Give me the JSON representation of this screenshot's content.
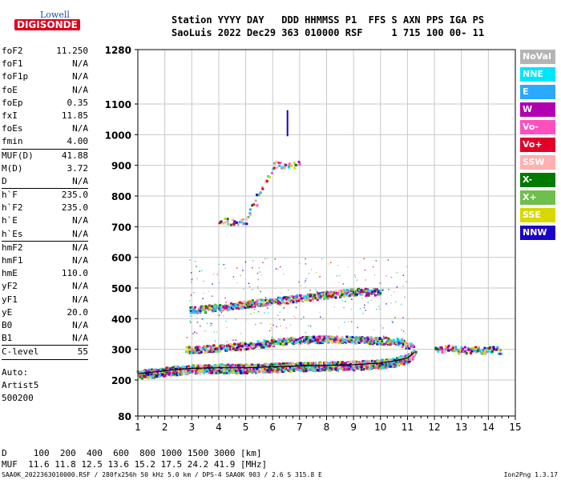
{
  "logo": {
    "line1": "Lowell",
    "line2": "DIGISONDE"
  },
  "header": {
    "line1": "Station YYYY DAY   DDD HHMMSS P1  FFS S AXN PPS IGA PS",
    "line2": "SaoLuis 2022 Dec29 363 010000 RSF     1 715 100 00- 11"
  },
  "params": {
    "g1": [
      {
        "k": "foF2",
        "v": "11.250"
      },
      {
        "k": "foF1",
        "v": "N/A"
      },
      {
        "k": "foF1p",
        "v": "N/A"
      },
      {
        "k": "foE",
        "v": "N/A"
      },
      {
        "k": "foEp",
        "v": "0.35"
      },
      {
        "k": "fxI",
        "v": "11.85"
      },
      {
        "k": "foEs",
        "v": "N/A"
      },
      {
        "k": "fmin",
        "v": "4.00"
      }
    ],
    "g2": [
      {
        "k": "MUF(D)",
        "v": "41.88"
      },
      {
        "k": "M(D)",
        "v": "3.72"
      },
      {
        "k": "D",
        "v": "N/A"
      }
    ],
    "g3": [
      {
        "k": "h`F",
        "v": "235.0"
      },
      {
        "k": "h`F2",
        "v": "235.0"
      },
      {
        "k": "h`E",
        "v": "N/A"
      },
      {
        "k": "h`Es",
        "v": "N/A"
      }
    ],
    "g4": [
      {
        "k": "hmF2",
        "v": "N/A"
      },
      {
        "k": "hmF1",
        "v": "N/A"
      },
      {
        "k": "hmE",
        "v": "110.0"
      },
      {
        "k": "yF2",
        "v": "N/A"
      },
      {
        "k": "yF1",
        "v": "N/A"
      },
      {
        "k": "yE",
        "v": "20.0"
      },
      {
        "k": "B0",
        "v": "N/A"
      },
      {
        "k": "B1",
        "v": "N/A"
      }
    ],
    "g5": [
      {
        "k": "C-level",
        "v": "55"
      }
    ],
    "extra": [
      "Auto:",
      "Artist5",
      "500200"
    ]
  },
  "footer": {
    "line1": "D     100  200  400  600  800 1000 1500 3000 [km]",
    "line2": "MUF  11.6 11.8 12.5 13.6 15.2 17.5 24.2 41.9 [MHz]",
    "line3": "SAA0K_2022363010000.RSF / 280fx256h 50 kHz 5.0 km / DPS-4 SAA0K 903 / 2.6 S 315.8 E",
    "line4": "Ion2Png 1.3.17"
  },
  "legend": [
    {
      "label": "NoVal",
      "color": "#b4b4b4"
    },
    {
      "label": "NNE",
      "color": "#00e5ff"
    },
    {
      "label": "E",
      "color": "#2aa9ff"
    },
    {
      "label": "W",
      "color": "#b000b0"
    },
    {
      "label": "Vo-",
      "color": "#ff4fbf"
    },
    {
      "label": "Vo+",
      "color": "#e0002a"
    },
    {
      "label": "SSW",
      "color": "#ffb0b0"
    },
    {
      "label": "X-",
      "color": "#007a00"
    },
    {
      "label": "X+",
      "color": "#6fbf4f"
    },
    {
      "label": "SSE",
      "color": "#d8d800"
    },
    {
      "label": "NNW",
      "color": "#1a00c8"
    }
  ],
  "chart_data": {
    "type": "scatter",
    "x_axis": {
      "min": 1,
      "max": 15,
      "ticks": [
        1,
        2,
        3,
        4,
        5,
        6,
        7,
        8,
        9,
        10,
        11,
        12,
        13,
        14,
        15
      ],
      "unit": "MHz"
    },
    "y_axis": {
      "min": 80,
      "max": 1280,
      "ticks": [
        80,
        200,
        300,
        400,
        500,
        600,
        700,
        800,
        900,
        1000,
        1100,
        1280
      ],
      "unit": "km",
      "scale": "piecewise"
    },
    "grid": true,
    "traces": [
      {
        "name": "F2 lower trace",
        "points": [
          [
            1.0,
            220
          ],
          [
            1.5,
            225
          ],
          [
            2.0,
            230
          ],
          [
            2.5,
            235
          ],
          [
            3.0,
            238
          ],
          [
            4.0,
            240
          ],
          [
            5.0,
            240
          ],
          [
            6.0,
            243
          ],
          [
            7.0,
            246
          ],
          [
            8.0,
            248
          ],
          [
            9.0,
            250
          ],
          [
            10.0,
            255
          ],
          [
            10.5,
            262
          ],
          [
            11.0,
            272
          ],
          [
            11.25,
            290
          ]
        ]
      },
      {
        "name": "F2 second hop",
        "points": [
          [
            2.8,
            300
          ],
          [
            3.5,
            305
          ],
          [
            4.5,
            310
          ],
          [
            5.5,
            320
          ],
          [
            6.5,
            330
          ],
          [
            7.5,
            335
          ],
          [
            8.5,
            335
          ],
          [
            9.5,
            332
          ],
          [
            10.5,
            330
          ],
          [
            11.2,
            310
          ]
        ]
      },
      {
        "name": "third hop",
        "points": [
          [
            2.9,
            430
          ],
          [
            4.0,
            440
          ],
          [
            5.0,
            450
          ],
          [
            6.0,
            460
          ],
          [
            7.0,
            470
          ],
          [
            8.0,
            480
          ],
          [
            9.0,
            490
          ],
          [
            10.0,
            490
          ]
        ]
      },
      {
        "name": "upper traces",
        "points": [
          [
            4.0,
            720
          ],
          [
            4.5,
            720
          ],
          [
            5.0,
            722
          ],
          [
            6.0,
            905
          ],
          [
            7.0,
            905
          ]
        ]
      },
      {
        "name": "marker",
        "points": [
          [
            6.55,
            1000
          ],
          [
            6.55,
            1080
          ]
        ]
      },
      {
        "name": "high freq cluster",
        "points": [
          [
            12.0,
            300
          ],
          [
            12.5,
            305
          ],
          [
            13.0,
            300
          ],
          [
            13.5,
            300
          ],
          [
            14.0,
            300
          ],
          [
            14.5,
            300
          ]
        ]
      }
    ]
  }
}
